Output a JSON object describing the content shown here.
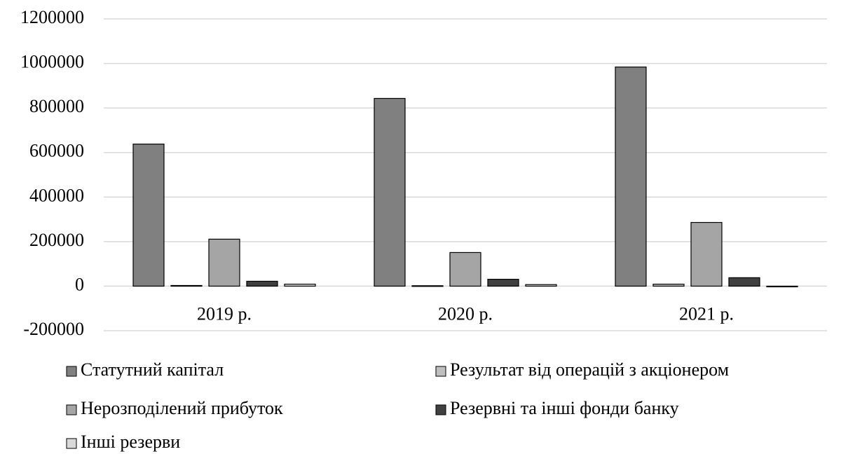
{
  "chart_data": {
    "type": "bar",
    "categories": [
      "2019 р.",
      "2020 р.",
      "2021 р."
    ],
    "series": [
      {
        "name": "Статутний капітал",
        "color": "#808080",
        "values": [
          638000,
          843000,
          984000
        ]
      },
      {
        "name": "Результат від операцій з акціонером",
        "color": "#bfbfbf",
        "values": [
          3000,
          2000,
          9000
        ]
      },
      {
        "name": "Нерозподілений прибуток",
        "color": "#a5a5a5",
        "values": [
          211000,
          151000,
          286000
        ]
      },
      {
        "name": "Резервні та інші фонди банку",
        "color": "#404040",
        "values": [
          22000,
          31000,
          38000
        ]
      },
      {
        "name": "Інші резерви",
        "color": "#d9d9d9",
        "values": [
          9000,
          7000,
          -3000
        ]
      }
    ],
    "ylim": [
      -200000,
      1200000
    ],
    "yticks": [
      -200000,
      0,
      200000,
      400000,
      600000,
      800000,
      1000000,
      1200000
    ],
    "grid": true
  }
}
